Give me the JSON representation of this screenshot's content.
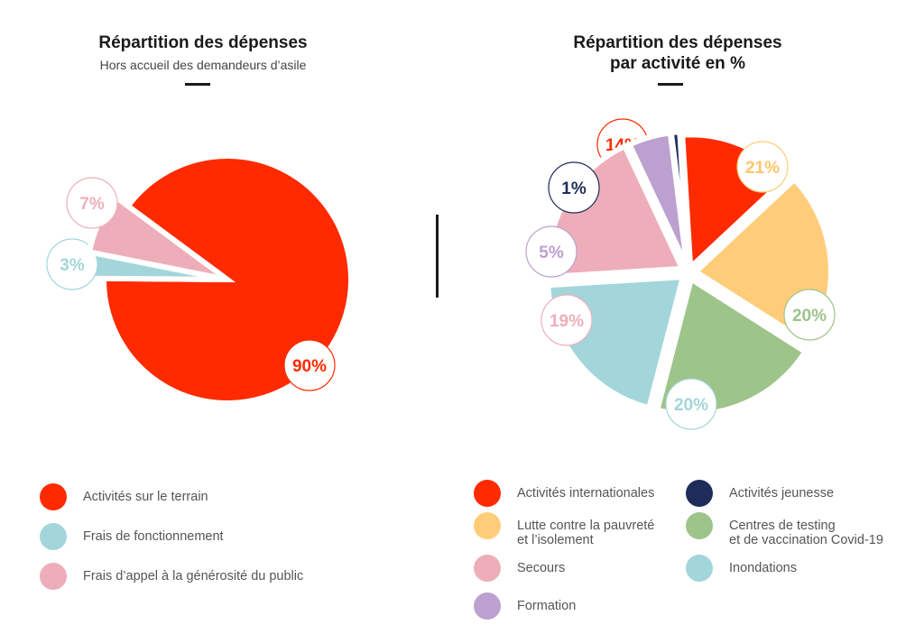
{
  "colors": {
    "red": "#ff2a00",
    "yellow": "#ffcd7a",
    "green": "#9dc489",
    "cyan": "#a2d6da",
    "pink": "#eeaeb9",
    "purple": "#bca0cf",
    "navy": "#1f2c5a"
  },
  "chart_data": [
    {
      "type": "pie",
      "title": "Répartition des dépenses",
      "subtitle": "Hors accueil des demandeurs d’asile",
      "slices": [
        {
          "label": "Activités sur le terrain",
          "value": 90,
          "value_label": "90%",
          "color": "#ff2a00"
        },
        {
          "label": "Frais de fonctionnement",
          "value": 3,
          "value_label": "3%",
          "color": "#a2d6da"
        },
        {
          "label": "Frais d’appel à la générosité du public",
          "value": 7,
          "value_label": "7%",
          "color": "#eeaeb9"
        }
      ],
      "legend_position": "bottom"
    },
    {
      "type": "pie",
      "title": "Répartition des dépenses\npar activité en %",
      "slices": [
        {
          "label": "Activités internationales",
          "value": 14,
          "value_label": "14%",
          "color": "#ff2a00"
        },
        {
          "label": "Lutte contre la pauvreté\net l’isolement",
          "value": 21,
          "value_label": "21%",
          "color": "#ffcd7a"
        },
        {
          "label": "Centres de testing\net de vaccination Covid-19",
          "value": 20,
          "value_label": "20%",
          "color": "#9dc489"
        },
        {
          "label": "Inondations",
          "value": 20,
          "value_label": "20%",
          "color": "#a2d6da"
        },
        {
          "label": "Secours",
          "value": 19,
          "value_label": "19%",
          "color": "#eeaeb9"
        },
        {
          "label": "Formation",
          "value": 5,
          "value_label": "5%",
          "color": "#bca0cf"
        },
        {
          "label": "Activités jeunesse",
          "value": 1,
          "value_label": "1%",
          "color": "#1f2c5a"
        }
      ],
      "legend_position": "bottom"
    }
  ],
  "legend_left": [
    {
      "label": "Activités sur le terrain",
      "color": "#ff2a00"
    },
    {
      "label": "Frais de fonctionnement",
      "color": "#a2d6da"
    },
    {
      "label": "Frais d’appel à la générosité du public",
      "color": "#eeaeb9"
    }
  ],
  "legend_right_col1": [
    {
      "label": "Activités internationales",
      "color": "#ff2a00"
    },
    {
      "label": "Lutte contre la pauvreté\net l’isolement",
      "color": "#ffcd7a"
    },
    {
      "label": "Secours",
      "color": "#eeaeb9"
    },
    {
      "label": "Formation",
      "color": "#bca0cf"
    }
  ],
  "legend_right_col2": [
    {
      "label": "Activités jeunesse",
      "color": "#1f2c5a"
    },
    {
      "label": "Centres de testing\net de vaccination Covid-19",
      "color": "#9dc489"
    },
    {
      "label": "Inondations",
      "color": "#a2d6da"
    }
  ]
}
